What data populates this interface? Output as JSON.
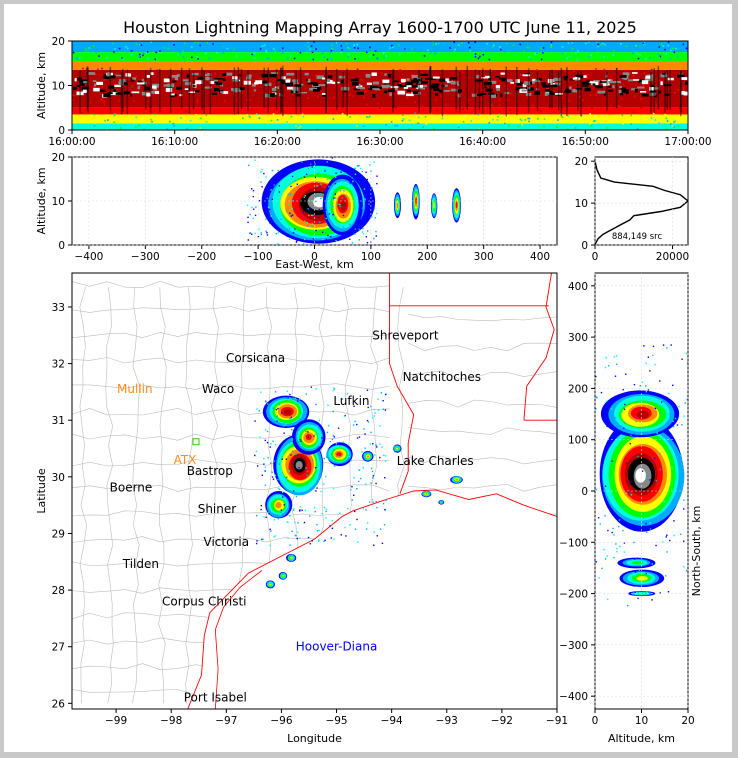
{
  "title": "Houston Lightning Mapping Array 1600-1700 UTC June 11, 2025",
  "colors": {
    "border": "#c8c8c8",
    "ramp": [
      "#0000ff",
      "#00aaff",
      "#00ffdd",
      "#00ff00",
      "#ffff00",
      "#ff8800",
      "#ff0000",
      "#b40000",
      "#000000",
      "#888888",
      "#ffffff"
    ],
    "state_lines": "#ff0000",
    "county_lines": "#bbbbbb",
    "site_orange": "#ff8c1a",
    "site_green": "#33cc00",
    "site_blue": "#0000ff"
  },
  "chart_data": [
    {
      "id": "time_height",
      "type": "heatmap",
      "ylabel": "Altitude, km",
      "ylim": [
        0,
        20
      ],
      "yticks": [
        "0",
        "10",
        "20"
      ],
      "x_range": [
        "16:00:00",
        "17:00:00"
      ],
      "xticks": [
        "16:00:00",
        "16:10:00",
        "16:20:00",
        "16:30:00",
        "16:40:00",
        "16:50:00",
        "17:00:00"
      ],
      "bands_km": [
        {
          "from": 0,
          "to": 1.5,
          "level": 2
        },
        {
          "from": 1.5,
          "to": 3.5,
          "level": 4
        },
        {
          "from": 3.5,
          "to": 5,
          "level": 6
        },
        {
          "from": 5,
          "to": 13.5,
          "level": 7
        },
        {
          "from": 13.5,
          "to": 15.5,
          "level": 5
        },
        {
          "from": 15.5,
          "to": 17.5,
          "level": 3
        },
        {
          "from": 17.5,
          "to": 20,
          "level": 1
        }
      ],
      "white_core_km": [
        8,
        13
      ]
    },
    {
      "id": "ew_altitude",
      "type": "heatmap",
      "xlabel": "East-West, km",
      "ylabel": "Altitude, km",
      "xlim": [
        -430,
        430
      ],
      "ylim": [
        0,
        20
      ],
      "xticks": [
        "−400",
        "−300",
        "−200",
        "−100",
        "0",
        "100",
        "200",
        "300",
        "400"
      ],
      "yticks": [
        "0",
        "10",
        "20"
      ],
      "blobs": [
        {
          "x": 5,
          "y": 9.5,
          "rx": 95,
          "ry": 9.5,
          "peak_level": 10
        },
        {
          "x": 50,
          "y": 9,
          "rx": 35,
          "ry": 7,
          "peak_level": 7
        },
        {
          "x": 147,
          "y": 9,
          "rx": 6,
          "ry": 3,
          "peak_level": 5
        },
        {
          "x": 180,
          "y": 10,
          "rx": 7,
          "ry": 4,
          "peak_level": 6
        },
        {
          "x": 212,
          "y": 9,
          "rx": 6,
          "ry": 3,
          "peak_level": 4
        },
        {
          "x": 252,
          "y": 9,
          "rx": 8,
          "ry": 4,
          "peak_level": 6
        }
      ]
    },
    {
      "id": "altitude_histogram",
      "type": "line",
      "xlim": [
        0,
        24000
      ],
      "ylim": [
        0,
        21
      ],
      "xticks": [
        "0",
        "20000"
      ],
      "yticks": [
        "0",
        "10",
        "20"
      ],
      "annotation": "884,149 src",
      "points": [
        [
          0,
          20
        ],
        [
          500,
          18
        ],
        [
          1500,
          16
        ],
        [
          5000,
          15
        ],
        [
          15000,
          14
        ],
        [
          18000,
          13
        ],
        [
          22000,
          12
        ],
        [
          24000,
          10.5
        ],
        [
          22000,
          9
        ],
        [
          17000,
          8
        ],
        [
          10000,
          7
        ],
        [
          9000,
          6
        ],
        [
          7000,
          5
        ],
        [
          4000,
          3.5
        ],
        [
          2000,
          2.5
        ],
        [
          800,
          1.5
        ],
        [
          200,
          0.5
        ],
        [
          0,
          0
        ]
      ]
    },
    {
      "id": "plan_view",
      "type": "heatmap",
      "xlabel": "Longitude",
      "ylabel": "Latitude",
      "xlim": [
        -99.8,
        -91
      ],
      "ylim": [
        25.9,
        33.6
      ],
      "xticks": [
        "−99",
        "−98",
        "−97",
        "−96",
        "−95",
        "−94",
        "−93",
        "−92",
        "−91"
      ],
      "yticks": [
        "26",
        "27",
        "28",
        "29",
        "30",
        "31",
        "32",
        "33"
      ],
      "cities": [
        {
          "name": "Shreveport",
          "lon": -93.75,
          "lat": 32.5
        },
        {
          "name": "Corsicana",
          "lon": -96.47,
          "lat": 32.1
        },
        {
          "name": "Mullin",
          "lon": -98.66,
          "lat": 31.55,
          "style": "orange"
        },
        {
          "name": "Waco",
          "lon": -97.15,
          "lat": 31.55
        },
        {
          "name": "Natchitoches",
          "lon": -93.09,
          "lat": 31.76
        },
        {
          "name": "Lufkin",
          "lon": -94.73,
          "lat": 31.34
        },
        {
          "name": "Lake Charles",
          "lon": -93.21,
          "lat": 30.28
        },
        {
          "name": "ATX",
          "lon": -97.75,
          "lat": 30.3,
          "style": "orange"
        },
        {
          "name": "Bastrop",
          "lon": -97.3,
          "lat": 30.1
        },
        {
          "name": "Boerne",
          "lon": -98.73,
          "lat": 29.81
        },
        {
          "name": "Shiner",
          "lon": -97.17,
          "lat": 29.43
        },
        {
          "name": "Victoria",
          "lon": -97.0,
          "lat": 28.85
        },
        {
          "name": "Tilden",
          "lon": -98.55,
          "lat": 28.46
        },
        {
          "name": "Corpus Christi",
          "lon": -97.4,
          "lat": 27.8
        },
        {
          "name": "Hoover-Diana",
          "lon": -95.0,
          "lat": 27.0,
          "style": "blue"
        },
        {
          "name": "Port Isabel",
          "lon": -97.2,
          "lat": 26.1
        }
      ],
      "blobs": [
        {
          "lon": -95.68,
          "lat": 30.2,
          "rlon": 0.48,
          "rlat": 0.55,
          "peak_level": 9
        },
        {
          "lon": -95.9,
          "lat": 31.15,
          "rlon": 0.42,
          "rlat": 0.3,
          "peak_level": 7
        },
        {
          "lon": -95.5,
          "lat": 30.7,
          "rlon": 0.3,
          "rlat": 0.3,
          "peak_level": 6
        },
        {
          "lon": -96.05,
          "lat": 29.5,
          "rlon": 0.25,
          "rlat": 0.25,
          "peak_level": 5
        },
        {
          "lon": -94.95,
          "lat": 30.4,
          "rlon": 0.25,
          "rlat": 0.2,
          "peak_level": 6
        },
        {
          "lon": -94.43,
          "lat": 30.36,
          "rlon": 0.1,
          "rlat": 0.09,
          "peak_level": 5
        },
        {
          "lon": -93.9,
          "lat": 30.5,
          "rlon": 0.08,
          "rlat": 0.07,
          "peak_level": 4
        },
        {
          "lon": -93.37,
          "lat": 29.7,
          "rlon": 0.09,
          "rlat": 0.06,
          "peak_level": 5
        },
        {
          "lon": -92.82,
          "lat": 29.95,
          "rlon": 0.12,
          "rlat": 0.07,
          "peak_level": 5
        },
        {
          "lon": -93.1,
          "lat": 29.55,
          "rlon": 0.05,
          "rlat": 0.04,
          "peak_level": 3
        },
        {
          "lon": -96.2,
          "lat": 28.1,
          "rlon": 0.08,
          "rlat": 0.07,
          "peak_level": 4
        },
        {
          "lon": -95.97,
          "lat": 28.25,
          "rlon": 0.08,
          "rlat": 0.07,
          "peak_level": 4
        },
        {
          "lon": -95.82,
          "lat": 28.57,
          "rlon": 0.09,
          "rlat": 0.07,
          "peak_level": 4
        }
      ]
    },
    {
      "id": "altitude_ns",
      "type": "heatmap",
      "xlabel": "Altitude, km",
      "ylabel": "North-South, km",
      "xlim": [
        0,
        20
      ],
      "ylim": [
        -425,
        425
      ],
      "xticks": [
        "0",
        "10",
        "20"
      ],
      "yticks": [
        "−400",
        "−300",
        "−200",
        "−100",
        "0",
        "100",
        "200",
        "300",
        "400"
      ],
      "blobs": [
        {
          "x": 10,
          "y": 30,
          "rx": 9.5,
          "ry": 110,
          "peak_level": 10
        },
        {
          "x": 10,
          "y": 150,
          "rx": 8,
          "ry": 45,
          "peak_level": 7
        },
        {
          "x": 9,
          "y": -140,
          "rx": 4,
          "ry": 10,
          "peak_level": 3
        },
        {
          "x": 10,
          "y": -170,
          "rx": 5,
          "ry": 18,
          "peak_level": 4
        },
        {
          "x": 10,
          "y": -200,
          "rx": 3,
          "ry": 5,
          "peak_level": 3
        }
      ]
    }
  ]
}
